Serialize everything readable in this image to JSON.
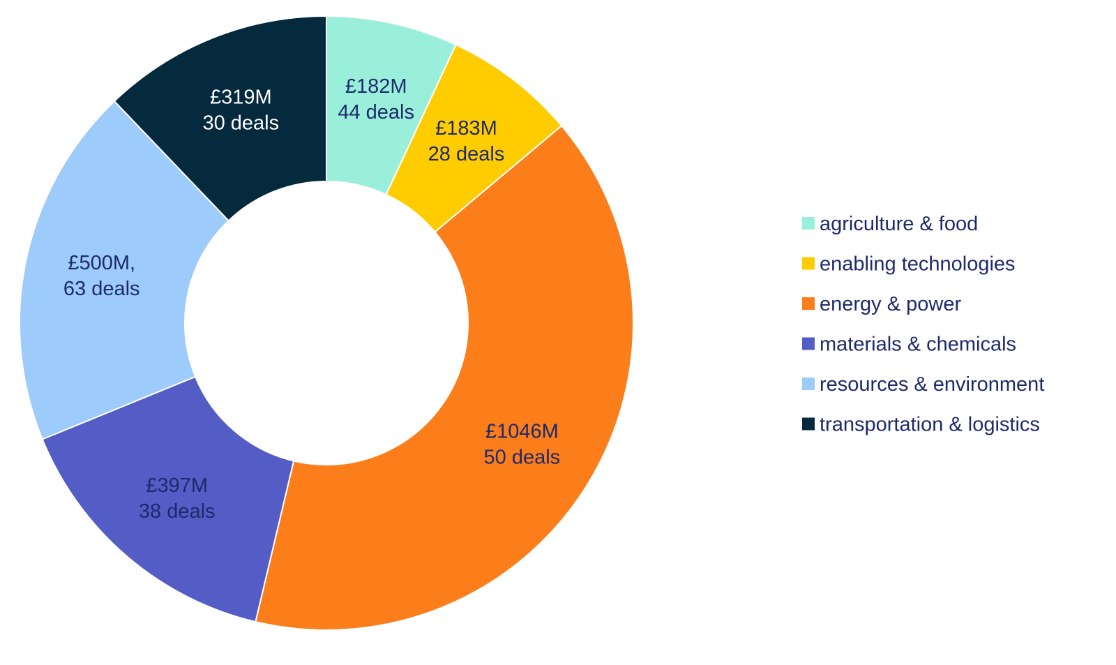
{
  "chart_data": {
    "type": "pie",
    "donut": true,
    "unit": "£M",
    "legend_position": "right",
    "slices": [
      {
        "category": "agriculture & food",
        "value": 182,
        "deals": 44,
        "label_lines": [
          "£182M",
          "44 deals"
        ],
        "color": "#99EFD9",
        "label_color": "#1D2A6B"
      },
      {
        "category": "enabling technologies",
        "value": 183,
        "deals": 28,
        "label_lines": [
          "£183M",
          "28 deals"
        ],
        "color": "#FFCC00",
        "label_color": "#1D2A6B"
      },
      {
        "category": "energy & power",
        "value": 1046,
        "deals": 50,
        "label_lines": [
          "£1046M",
          "50 deals"
        ],
        "color": "#FB7E1B",
        "label_color": "#1D2A6B"
      },
      {
        "category": "materials & chemicals",
        "value": 397,
        "deals": 38,
        "label_lines": [
          "£397M",
          "38 deals"
        ],
        "color": "#545CC6",
        "label_color": "#1D2A6B"
      },
      {
        "category": "resources & environment",
        "value": 500,
        "deals": 63,
        "label_lines": [
          "£500M,",
          "63 deals"
        ],
        "color": "#9CCBFC",
        "label_color": "#1D2A6B"
      },
      {
        "category": "transportation & logistics",
        "value": 319,
        "deals": 30,
        "label_lines": [
          "£319M",
          "30 deals"
        ],
        "color": "#05293D",
        "label_color": "#FFFFFF"
      }
    ],
    "legend_text_color": "#1D2A6B"
  }
}
